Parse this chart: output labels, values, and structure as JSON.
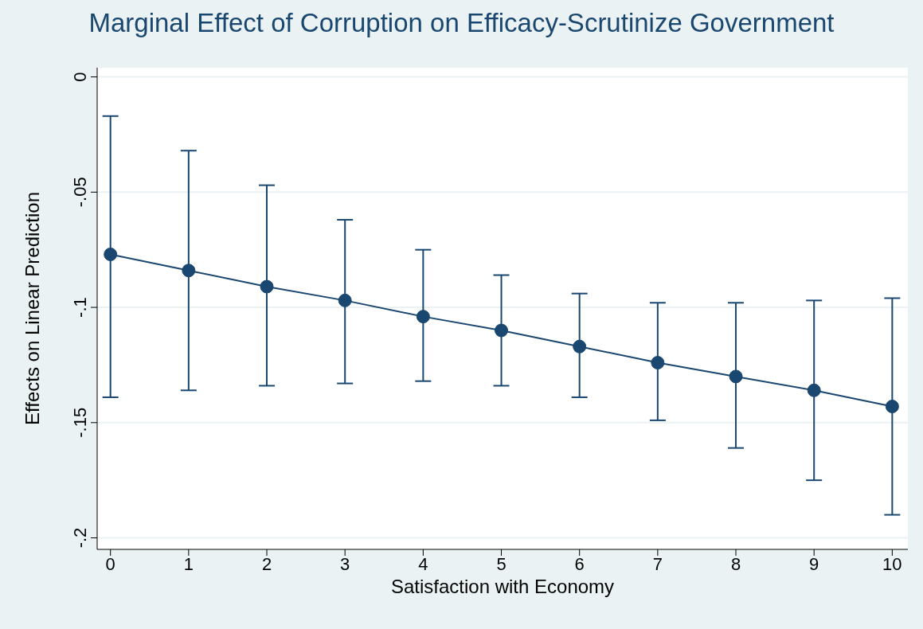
{
  "chart_data": {
    "type": "line",
    "title": "Marginal Effect of Corruption on Efficacy-Scrutinize Government",
    "xlabel": "Satisfaction with Economy",
    "ylabel": "Effects on Linear Prediction",
    "x": [
      0,
      1,
      2,
      3,
      4,
      5,
      6,
      7,
      8,
      9,
      10
    ],
    "series": [
      {
        "color": "#1a476f",
        "values": [
          -0.077,
          -0.084,
          -0.091,
          -0.097,
          -0.104,
          -0.11,
          -0.117,
          -0.124,
          -0.13,
          -0.136,
          -0.143
        ],
        "errors": [
          [
            -0.139,
            -0.017
          ],
          [
            -0.136,
            -0.032
          ],
          [
            -0.134,
            -0.047
          ],
          [
            -0.133,
            -0.062
          ],
          [
            -0.132,
            -0.075
          ],
          [
            -0.134,
            -0.086
          ],
          [
            -0.139,
            -0.094
          ],
          [
            -0.149,
            -0.098
          ],
          [
            -0.161,
            -0.098
          ],
          [
            -0.175,
            -0.097
          ],
          [
            -0.19,
            -0.096
          ]
        ]
      }
    ],
    "xlim": [
      -0.17,
      10.2
    ],
    "xticks": [
      0,
      1,
      2,
      3,
      4,
      5,
      6,
      7,
      8,
      9,
      10
    ],
    "ylim": [
      -0.205,
      0.004
    ],
    "yticks": [
      0,
      {
        "value": -0.05,
        "label": "-.05"
      },
      {
        "value": -0.1,
        "label": "-.1"
      },
      {
        "value": -0.15,
        "label": "-.15"
      },
      {
        "value": -0.2,
        "label": "-.2"
      }
    ],
    "grid": "y",
    "marker": "circle",
    "line_style": "solid"
  }
}
